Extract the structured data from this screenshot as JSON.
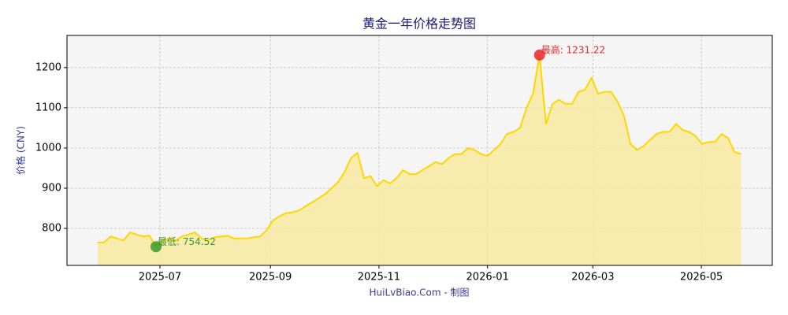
{
  "chart_data": {
    "type": "line",
    "title": "黄金一年价格走势图",
    "ylabel": "价格 (CNY)",
    "footer": "HuiLvBiao.Com - 制图",
    "x": [
      2025.4,
      2025.41,
      2025.42,
      2025.43,
      2025.44,
      2025.45,
      2025.46,
      2025.47,
      2025.48,
      2025.49,
      2025.5,
      2025.51,
      2025.52,
      2025.53,
      2025.54,
      2025.55,
      2025.56,
      2025.57,
      2025.58,
      2025.59,
      2025.6,
      2025.61,
      2025.62,
      2025.63,
      2025.64,
      2025.65,
      2025.66,
      2025.67,
      2025.68,
      2025.69,
      2025.7,
      2025.71,
      2025.72,
      2025.73,
      2025.74,
      2025.75,
      2025.76,
      2025.77,
      2025.78,
      2025.79,
      2025.8,
      2025.81,
      2025.82,
      2025.83,
      2025.84,
      2025.85,
      2025.86,
      2025.87,
      2025.88,
      2025.89,
      2025.9,
      2025.91,
      2025.92,
      2025.93,
      2025.94,
      2025.95,
      2025.96,
      2025.97,
      2025.98,
      2025.99,
      2026.0,
      2026.01,
      2026.02,
      2026.03,
      2026.04,
      2026.05,
      2026.06,
      2026.07,
      2026.08,
      2026.09,
      2026.1,
      2026.11,
      2026.12,
      2026.13,
      2026.14,
      2026.15,
      2026.16,
      2026.17,
      2026.18,
      2026.19,
      2026.2,
      2026.21,
      2026.22,
      2026.23,
      2026.24,
      2026.25,
      2026.26,
      2026.27,
      2026.28,
      2026.29,
      2026.3,
      2026.31,
      2026.32,
      2026.33,
      2026.34,
      2026.35,
      2026.36,
      2026.37,
      2026.38,
      2026.39
    ],
    "series": [
      {
        "name": "价格",
        "color": "#ffd700",
        "fill": "#f7e9a0",
        "values": [
          765,
          765,
          780,
          775,
          770,
          790,
          785,
          780,
          782,
          754.52,
          770,
          775,
          770,
          780,
          785,
          790,
          775,
          770,
          778,
          780,
          782,
          775,
          775,
          775,
          778,
          780,
          795,
          820,
          830,
          838,
          840,
          845,
          855,
          865,
          875,
          885,
          900,
          915,
          940,
          975,
          988,
          925,
          930,
          905,
          920,
          912,
          925,
          945,
          935,
          935,
          945,
          955,
          965,
          960,
          975,
          985,
          985,
          1000,
          995,
          985,
          980,
          995,
          1010,
          1035,
          1040,
          1050,
          1100,
          1135,
          1231.22,
          1060,
          1110,
          1120,
          1110,
          1110,
          1140,
          1145,
          1175,
          1135,
          1140,
          1140,
          1115,
          1080,
          1010,
          995,
          1005,
          1020,
          1035,
          1040,
          1040,
          1060,
          1045,
          1040,
          1030,
          1010,
          1015,
          1015,
          1035,
          1025,
          990,
          985
        ]
      }
    ],
    "annotations": [
      {
        "text": "最高: 1231.22",
        "x": 2026.08,
        "y": 1231.22,
        "color": "#e8282b"
      },
      {
        "text": "最低: 754.52",
        "x": 2025.49,
        "y": 754.52,
        "color": "#3a9a2a"
      }
    ],
    "xlim": [
      2025.353,
      2026.438
    ],
    "xticks": [
      {
        "value": 2025.496,
        "label": "2025-07"
      },
      {
        "value": 2025.666,
        "label": "2025-09"
      },
      {
        "value": 2025.833,
        "label": "2025-11"
      },
      {
        "value": 2026.0,
        "label": "2026-01"
      },
      {
        "value": 2026.162,
        "label": "2026-03"
      },
      {
        "value": 2026.329,
        "label": "2026-05"
      }
    ],
    "ylim": [
      708,
      1280
    ],
    "yticks": [
      800,
      900,
      1000,
      1100,
      1200
    ],
    "grid": true
  }
}
